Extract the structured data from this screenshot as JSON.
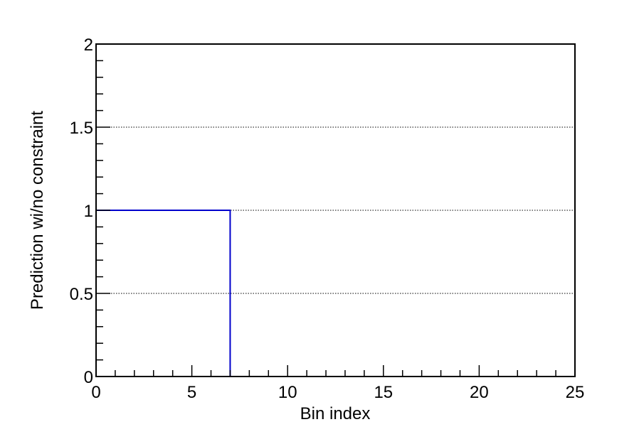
{
  "chart_data": {
    "type": "line",
    "title": "",
    "xlabel": "Bin index",
    "ylabel": "Prediction wi/no constraint",
    "xlim": [
      0,
      25
    ],
    "ylim": [
      0,
      2
    ],
    "x_ticks": [
      "0",
      "5",
      "10",
      "15",
      "20",
      "25"
    ],
    "y_ticks": [
      "0",
      "0.5",
      "1",
      "1.5",
      "2"
    ],
    "grid": "horizontal dotted lines at 0.5, 1, 1.5",
    "series": [
      {
        "style": "step histogram",
        "color": "#0000cc",
        "bin_width": 1,
        "x": [
          0,
          1,
          2,
          3,
          4,
          5,
          6,
          7,
          8,
          9,
          10,
          11,
          12,
          13,
          14,
          15,
          16,
          17,
          18,
          19,
          20,
          21,
          22,
          23,
          24
        ],
        "y": [
          1,
          1,
          1,
          1,
          1,
          1,
          1,
          0,
          0,
          0,
          0,
          0,
          0,
          0,
          0,
          0,
          0,
          0,
          0,
          0,
          0,
          0,
          0,
          0,
          0
        ]
      }
    ]
  }
}
